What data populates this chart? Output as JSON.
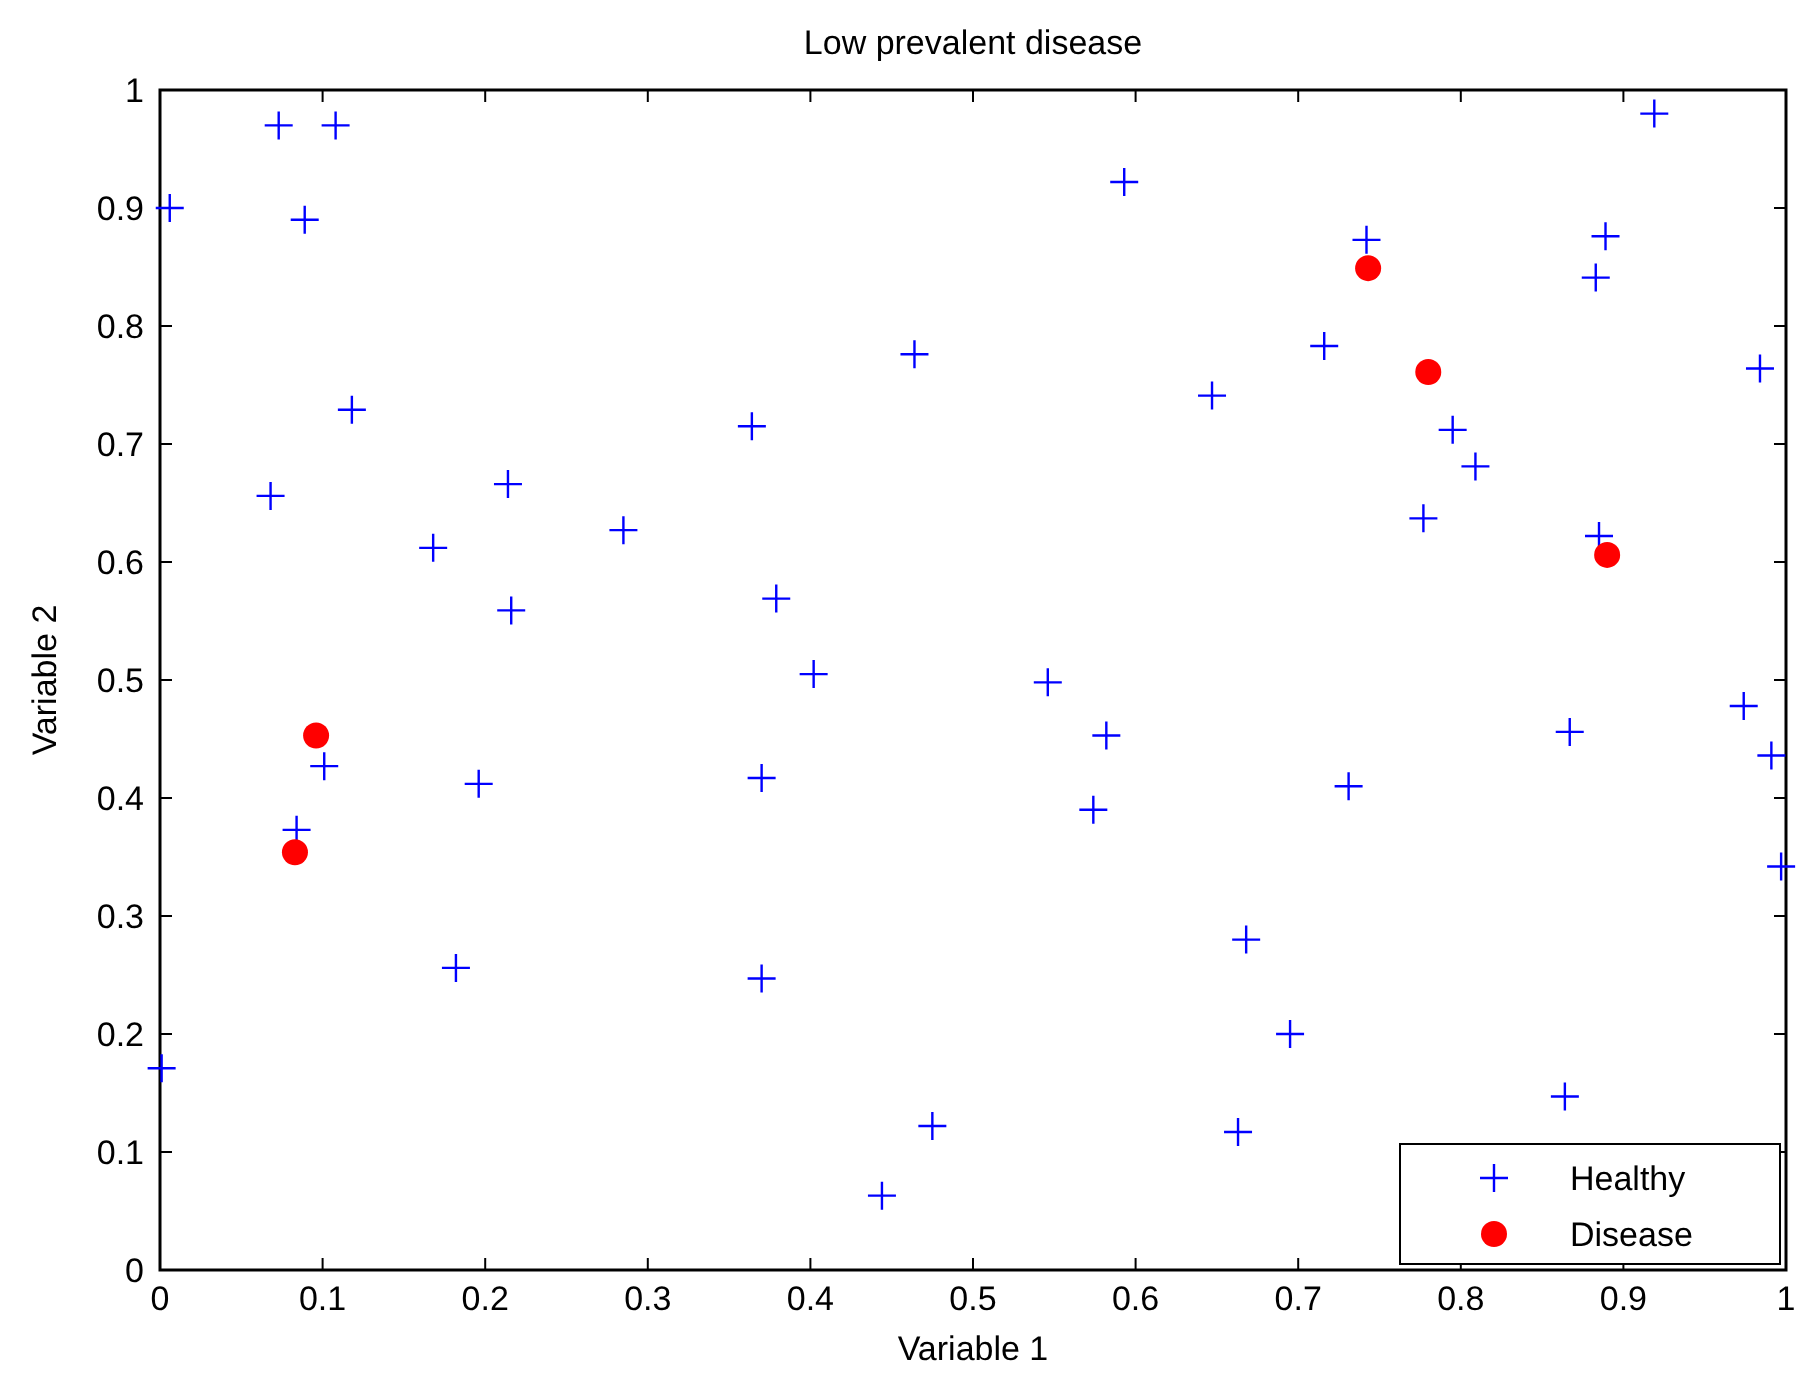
{
  "chart_data": {
    "type": "scatter",
    "title": "Low prevalent disease",
    "xlabel": "Variable 1",
    "ylabel": "Variable 2",
    "xlim": [
      0,
      1
    ],
    "ylim": [
      0,
      1
    ],
    "xticks": [
      0,
      0.1,
      0.2,
      0.3,
      0.4,
      0.5,
      0.6,
      0.7,
      0.8,
      0.9,
      1
    ],
    "yticks": [
      0,
      0.1,
      0.2,
      0.3,
      0.4,
      0.5,
      0.6,
      0.7,
      0.8,
      0.9,
      1
    ],
    "grid": false,
    "legend": "bottom right",
    "series": [
      {
        "name": "Healthy",
        "color": "#0000ff",
        "marker": "cross",
        "x": [
          0.006,
          0.073,
          0.108,
          0.089,
          0.068,
          0.118,
          0.168,
          0.214,
          0.216,
          0.196,
          0.101,
          0.084,
          0.182,
          0.001,
          0.285,
          0.364,
          0.379,
          0.402,
          0.37,
          0.37,
          0.464,
          0.475,
          0.444,
          0.546,
          0.582,
          0.574,
          0.593,
          0.647,
          0.716,
          0.668,
          0.663,
          0.695,
          0.731,
          0.742,
          0.777,
          0.795,
          0.809,
          0.883,
          0.889,
          0.885,
          0.867,
          0.864,
          0.919,
          0.984,
          0.974,
          0.991,
          0.997
        ],
        "values": [
          0.9,
          0.97,
          0.97,
          0.89,
          0.656,
          0.729,
          0.612,
          0.666,
          0.559,
          0.412,
          0.427,
          0.373,
          0.256,
          0.171,
          0.627,
          0.715,
          0.569,
          0.505,
          0.417,
          0.247,
          0.776,
          0.122,
          0.063,
          0.498,
          0.453,
          0.39,
          0.922,
          0.741,
          0.783,
          0.28,
          0.117,
          0.2,
          0.41,
          0.873,
          0.637,
          0.712,
          0.681,
          0.841,
          0.876,
          0.622,
          0.456,
          0.147,
          0.98,
          0.764,
          0.478,
          0.436,
          0.342
        ]
      },
      {
        "name": "Disease",
        "color": "#ff0000",
        "marker": "circle",
        "x": [
          0.096,
          0.083,
          0.743,
          0.78,
          0.89
        ],
        "values": [
          0.453,
          0.354,
          0.849,
          0.761,
          0.606
        ]
      }
    ]
  }
}
